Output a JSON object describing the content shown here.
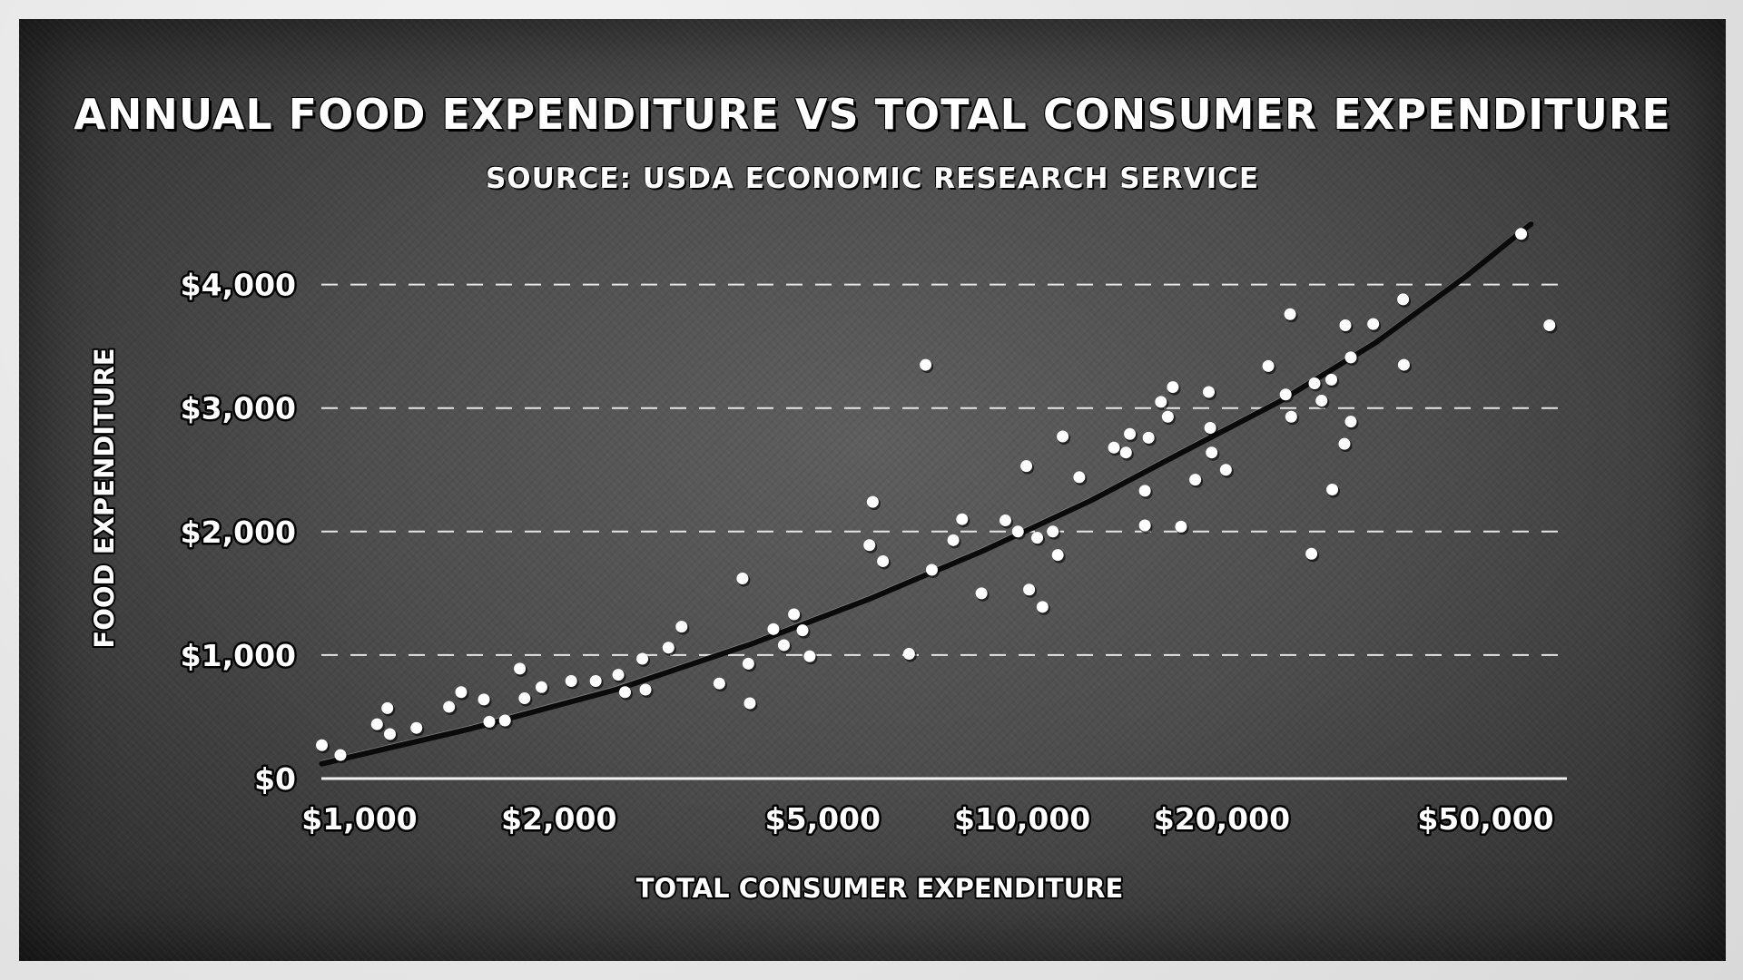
{
  "chart_data": {
    "type": "scatter",
    "title": "ANNUAL FOOD EXPENDITURE VS TOTAL CONSUMER EXPENDITURE",
    "subtitle": "SOURCE: USDA ECONOMIC RESEARCH SERVICE",
    "xlabel": "TOTAL CONSUMER EXPENDITURE",
    "ylabel": "FOOD EXPENDITURE",
    "x_scale": "log",
    "xlim": [
      890,
      68000
    ],
    "ylim": [
      0,
      4500
    ],
    "x_ticks": [
      1000,
      2000,
      5000,
      10000,
      20000,
      50000
    ],
    "x_tick_labels": [
      "$1,000",
      "$2,000",
      "$5,000",
      "$10,000",
      "$20,000",
      "$50,000"
    ],
    "y_ticks": [
      0,
      1000,
      2000,
      3000,
      4000
    ],
    "y_tick_labels": [
      "$0",
      "$1,000",
      "$2,000",
      "$3,000",
      "$4,000"
    ],
    "grid": "horizontal-dashed",
    "points": [
      {
        "x": 900,
        "y": 270
      },
      {
        "x": 960,
        "y": 190
      },
      {
        "x": 1090,
        "y": 440
      },
      {
        "x": 1130,
        "y": 570
      },
      {
        "x": 1140,
        "y": 360
      },
      {
        "x": 1250,
        "y": 410
      },
      {
        "x": 1400,
        "y": 580
      },
      {
        "x": 1460,
        "y": 700
      },
      {
        "x": 1580,
        "y": 640
      },
      {
        "x": 1610,
        "y": 460
      },
      {
        "x": 1700,
        "y": 470
      },
      {
        "x": 1790,
        "y": 890
      },
      {
        "x": 1820,
        "y": 650
      },
      {
        "x": 1930,
        "y": 740
      },
      {
        "x": 2140,
        "y": 790
      },
      {
        "x": 2330,
        "y": 790
      },
      {
        "x": 2520,
        "y": 840
      },
      {
        "x": 2580,
        "y": 700
      },
      {
        "x": 2740,
        "y": 970
      },
      {
        "x": 2770,
        "y": 720
      },
      {
        "x": 3000,
        "y": 1060
      },
      {
        "x": 3140,
        "y": 1230
      },
      {
        "x": 3580,
        "y": 770
      },
      {
        "x": 3880,
        "y": 1620
      },
      {
        "x": 3960,
        "y": 930
      },
      {
        "x": 3980,
        "y": 610
      },
      {
        "x": 4320,
        "y": 1210
      },
      {
        "x": 4480,
        "y": 1080
      },
      {
        "x": 4640,
        "y": 1330
      },
      {
        "x": 4780,
        "y": 1200
      },
      {
        "x": 4900,
        "y": 990
      },
      {
        "x": 6100,
        "y": 2240
      },
      {
        "x": 6030,
        "y": 1890
      },
      {
        "x": 6320,
        "y": 1760
      },
      {
        "x": 6920,
        "y": 1010
      },
      {
        "x": 7330,
        "y": 3350
      },
      {
        "x": 7490,
        "y": 1690
      },
      {
        "x": 8070,
        "y": 1930
      },
      {
        "x": 8320,
        "y": 2100
      },
      {
        "x": 8900,
        "y": 1500
      },
      {
        "x": 9670,
        "y": 2090
      },
      {
        "x": 10100,
        "y": 2000
      },
      {
        "x": 10400,
        "y": 2530
      },
      {
        "x": 10500,
        "y": 1530
      },
      {
        "x": 10800,
        "y": 1950
      },
      {
        "x": 11000,
        "y": 1390
      },
      {
        "x": 11400,
        "y": 2000
      },
      {
        "x": 11600,
        "y": 1810
      },
      {
        "x": 11800,
        "y": 2770
      },
      {
        "x": 12500,
        "y": 2440
      },
      {
        "x": 14100,
        "y": 2680
      },
      {
        "x": 14700,
        "y": 2640
      },
      {
        "x": 14900,
        "y": 2790
      },
      {
        "x": 15700,
        "y": 2050
      },
      {
        "x": 15700,
        "y": 2330
      },
      {
        "x": 15900,
        "y": 2760
      },
      {
        "x": 16600,
        "y": 3050
      },
      {
        "x": 17000,
        "y": 2930
      },
      {
        "x": 17300,
        "y": 3170
      },
      {
        "x": 17800,
        "y": 2040
      },
      {
        "x": 18700,
        "y": 2420
      },
      {
        "x": 19600,
        "y": 3130
      },
      {
        "x": 19700,
        "y": 2840
      },
      {
        "x": 19800,
        "y": 2640
      },
      {
        "x": 20800,
        "y": 2500
      },
      {
        "x": 24100,
        "y": 3340
      },
      {
        "x": 25600,
        "y": 3110
      },
      {
        "x": 26100,
        "y": 2930
      },
      {
        "x": 26000,
        "y": 3760
      },
      {
        "x": 28000,
        "y": 1820
      },
      {
        "x": 28300,
        "y": 3200
      },
      {
        "x": 29000,
        "y": 3060
      },
      {
        "x": 30000,
        "y": 3230
      },
      {
        "x": 30100,
        "y": 2340
      },
      {
        "x": 31400,
        "y": 2710
      },
      {
        "x": 31500,
        "y": 3670
      },
      {
        "x": 32100,
        "y": 2890
      },
      {
        "x": 32100,
        "y": 3410
      },
      {
        "x": 34700,
        "y": 3680
      },
      {
        "x": 38500,
        "y": 3880
      },
      {
        "x": 38600,
        "y": 3350
      },
      {
        "x": 58000,
        "y": 4410
      },
      {
        "x": 64000,
        "y": 3670
      }
    ],
    "trend_line": {
      "x": [
        900,
        1500,
        2500,
        4000,
        6000,
        9000,
        13000,
        18000,
        25000,
        35000,
        48000,
        60000
      ],
      "y": [
        120,
        400,
        720,
        1090,
        1450,
        1850,
        2250,
        2650,
        3050,
        3530,
        4070,
        4490
      ]
    }
  }
}
